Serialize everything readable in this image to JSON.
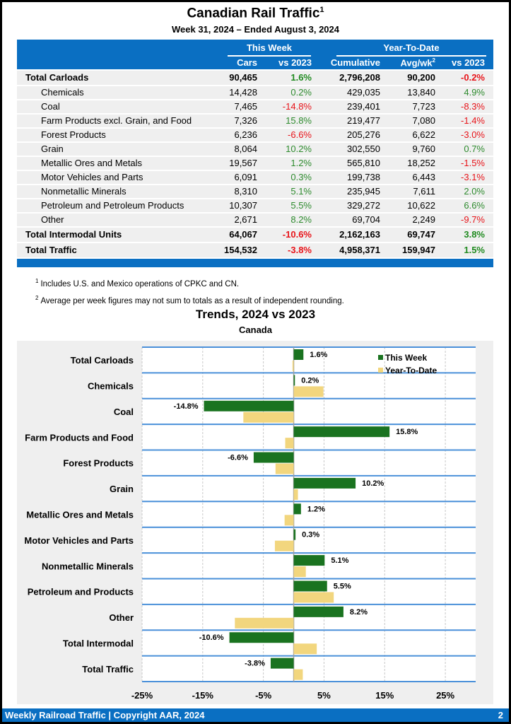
{
  "header": {
    "title": "Canadian Rail Traffic",
    "title_footnote": "1",
    "subtitle": "Week 31, 2024 – Ended August 3, 2024"
  },
  "table": {
    "group_this_week": "This Week",
    "group_ytd": "Year-To-Date",
    "columns": [
      "Cars",
      "vs 2023",
      "Cumulative",
      "Avg/wk",
      "vs 2023"
    ],
    "avg_footnote": "2",
    "rows": [
      {
        "label": "Total Carloads",
        "bold": true,
        "cars": "90,465",
        "vs_week": "1.6%",
        "cumulative": "2,796,208",
        "avg": "90,200",
        "vs_ytd": "-0.2%"
      },
      {
        "label": "Chemicals",
        "bold": false,
        "cars": "14,428",
        "vs_week": "0.2%",
        "cumulative": "429,035",
        "avg": "13,840",
        "vs_ytd": "4.9%"
      },
      {
        "label": "Coal",
        "bold": false,
        "cars": "7,465",
        "vs_week": "-14.8%",
        "cumulative": "239,401",
        "avg": "7,723",
        "vs_ytd": "-8.3%"
      },
      {
        "label": "Farm Products excl. Grain, and Food",
        "bold": false,
        "cars": "7,326",
        "vs_week": "15.8%",
        "cumulative": "219,477",
        "avg": "7,080",
        "vs_ytd": "-1.4%"
      },
      {
        "label": "Forest Products",
        "bold": false,
        "cars": "6,236",
        "vs_week": "-6.6%",
        "cumulative": "205,276",
        "avg": "6,622",
        "vs_ytd": "-3.0%"
      },
      {
        "label": "Grain",
        "bold": false,
        "cars": "8,064",
        "vs_week": "10.2%",
        "cumulative": "302,550",
        "avg": "9,760",
        "vs_ytd": "0.7%"
      },
      {
        "label": "Metallic Ores and Metals",
        "bold": false,
        "cars": "19,567",
        "vs_week": "1.2%",
        "cumulative": "565,810",
        "avg": "18,252",
        "vs_ytd": "-1.5%"
      },
      {
        "label": "Motor Vehicles and Parts",
        "bold": false,
        "cars": "6,091",
        "vs_week": "0.3%",
        "cumulative": "199,738",
        "avg": "6,443",
        "vs_ytd": "-3.1%"
      },
      {
        "label": "Nonmetallic Minerals",
        "bold": false,
        "cars": "8,310",
        "vs_week": "5.1%",
        "cumulative": "235,945",
        "avg": "7,611",
        "vs_ytd": "2.0%"
      },
      {
        "label": "Petroleum and Petroleum Products",
        "bold": false,
        "cars": "10,307",
        "vs_week": "5.5%",
        "cumulative": "329,272",
        "avg": "10,622",
        "vs_ytd": "6.6%"
      },
      {
        "label": "Other",
        "bold": false,
        "cars": "2,671",
        "vs_week": "8.2%",
        "cumulative": "69,704",
        "avg": "2,249",
        "vs_ytd": "-9.7%"
      },
      {
        "label": "Total Intermodal Units",
        "bold": true,
        "cars": "64,067",
        "vs_week": "-10.6%",
        "cumulative": "2,162,163",
        "avg": "69,747",
        "vs_ytd": "3.8%"
      },
      {
        "label": "Total Traffic",
        "bold": true,
        "cars": "154,532",
        "vs_week": "-3.8%",
        "cumulative": "4,958,371",
        "avg": "159,947",
        "vs_ytd": "1.5%"
      }
    ]
  },
  "notes": [
    {
      "mark": "1",
      "text": "Includes U.S. and Mexico operations of CPKC and CN."
    },
    {
      "mark": "2",
      "text": "Average per week figures may not sum to totals as a result of independent rounding."
    }
  ],
  "colors": {
    "brand_blue": "#0a6fc2",
    "positive": "#2e8b2e",
    "negative": "#e8141a",
    "this_week_bar": "#1a7320",
    "ytd_bar": "#f2d67e",
    "row_divider": "#4a90d9"
  },
  "chart_data": {
    "type": "bar",
    "orientation": "horizontal",
    "title": "Trends, 2024 vs 2023",
    "subtitle": "Canada",
    "xlabel": "",
    "ylabel": "",
    "xlim": [
      -25,
      30
    ],
    "x_ticks": [
      -25,
      -15,
      -5,
      5,
      15,
      25
    ],
    "x_tick_labels": [
      "-25%",
      "-15%",
      "-5%",
      "5%",
      "15%",
      "25%"
    ],
    "grid": true,
    "legend_position": "top-right",
    "categories": [
      "Total Carloads",
      "Chemicals",
      "Coal",
      "Farm Products and Food",
      "Forest Products",
      "Grain",
      "Metallic Ores and Metals",
      "Motor Vehicles and Parts",
      "Nonmetallic Minerals",
      "Petroleum and Products",
      "Other",
      "Total Intermodal",
      "Total Traffic"
    ],
    "series": [
      {
        "name": "This Week",
        "values": [
          1.6,
          0.2,
          -14.8,
          15.8,
          -6.6,
          10.2,
          1.2,
          0.3,
          5.1,
          5.5,
          8.2,
          -10.6,
          -3.8
        ],
        "labels": [
          "1.6%",
          "0.2%",
          "-14.8%",
          "15.8%",
          "-6.6%",
          "10.2%",
          "1.2%",
          "0.3%",
          "5.1%",
          "5.5%",
          "8.2%",
          "-10.6%",
          "-3.8%"
        ]
      },
      {
        "name": "Year-To-Date",
        "values": [
          -0.2,
          4.9,
          -8.3,
          -1.4,
          -3.0,
          0.7,
          -1.5,
          -3.1,
          2.0,
          6.6,
          -9.7,
          3.8,
          1.5
        ]
      }
    ]
  },
  "footer": {
    "text": "Weekly Railroad Traffic | Copyright AAR, 2024",
    "page": "2"
  }
}
